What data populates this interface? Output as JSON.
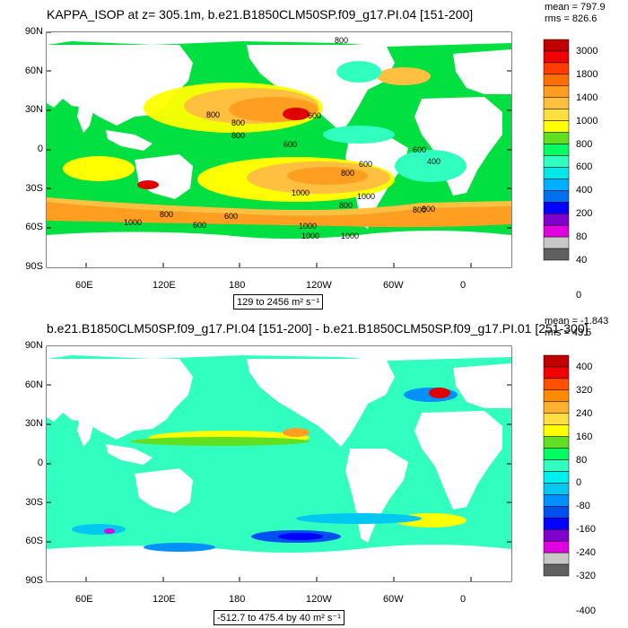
{
  "panel1": {
    "title": "KAPPA_ISOP at z= 305.1m, b.e21.B1850CLM50SP.f09_g17.PI.04 [151-200]",
    "mean": "mean = 797.9",
    "rms": "rms = 826.6",
    "range": "129 to 2456 m² s⁻¹",
    "contour_labels": [
      "800",
      "800",
      "800",
      "800",
      "600",
      "600",
      "600",
      "400",
      "600",
      "800",
      "1000",
      "1000",
      "800",
      "600",
      "800",
      "1000",
      "800",
      "600",
      "1000",
      "1000",
      "1000",
      "800"
    ],
    "colorbar": {
      "labels": [
        "3000",
        "1800",
        "1400",
        "1000",
        "800",
        "600",
        "400",
        "200",
        "80",
        "40",
        "0"
      ],
      "colors": [
        "#c00000",
        "#f00000",
        "#ff3c00",
        "#ff7000",
        "#ff9e20",
        "#ffc040",
        "#ffe040",
        "#ffff00",
        "#60e020",
        "#00ff60",
        "#30ffc0",
        "#00e8e8",
        "#00b0ff",
        "#0070f0",
        "#0000ff",
        "#8000d0",
        "#e000e0",
        "#c8c8c8",
        "#606060"
      ]
    }
  },
  "panel2": {
    "title": "b.e21.B1850CLM50SP.f09_g17.PI.04 [151-200] - b.e21.B1850CLM50SP.f09_g17.PI.01 [251-300]",
    "mean": "mean = -1.843",
    "rms": "rms = 43.5",
    "range": "-512.7 to 475.4 by 40 m² s⁻¹",
    "colorbar": {
      "labels": [
        "400",
        "320",
        "240",
        "160",
        "80",
        "0",
        "-80",
        "-160",
        "-240",
        "-320",
        "-400"
      ],
      "colors": [
        "#c00000",
        "#f00000",
        "#ff5000",
        "#ff8c00",
        "#ffb030",
        "#ffe040",
        "#ffff00",
        "#60e020",
        "#00ff60",
        "#30ffc0",
        "#00f0f0",
        "#00c8f0",
        "#0090ff",
        "#0050f0",
        "#0000ff",
        "#8000d0",
        "#e000e0",
        "#c8c8c8",
        "#606060"
      ]
    }
  },
  "axes": {
    "lat_labels": [
      "90N",
      "60N",
      "30N",
      "0",
      "30S",
      "60S",
      "90S"
    ],
    "lon_labels": [
      "60E",
      "120E",
      "180",
      "120W",
      "60W",
      "0"
    ]
  },
  "palette": {
    "land": "#ffffff",
    "green": "#00e040",
    "green2": "#60e020",
    "yellow": "#ffff00",
    "orange": "#ff9e20",
    "orange2": "#ffc040",
    "cyan": "#30ffc0",
    "cyan2": "#00e8e8",
    "red": "#e00000"
  }
}
